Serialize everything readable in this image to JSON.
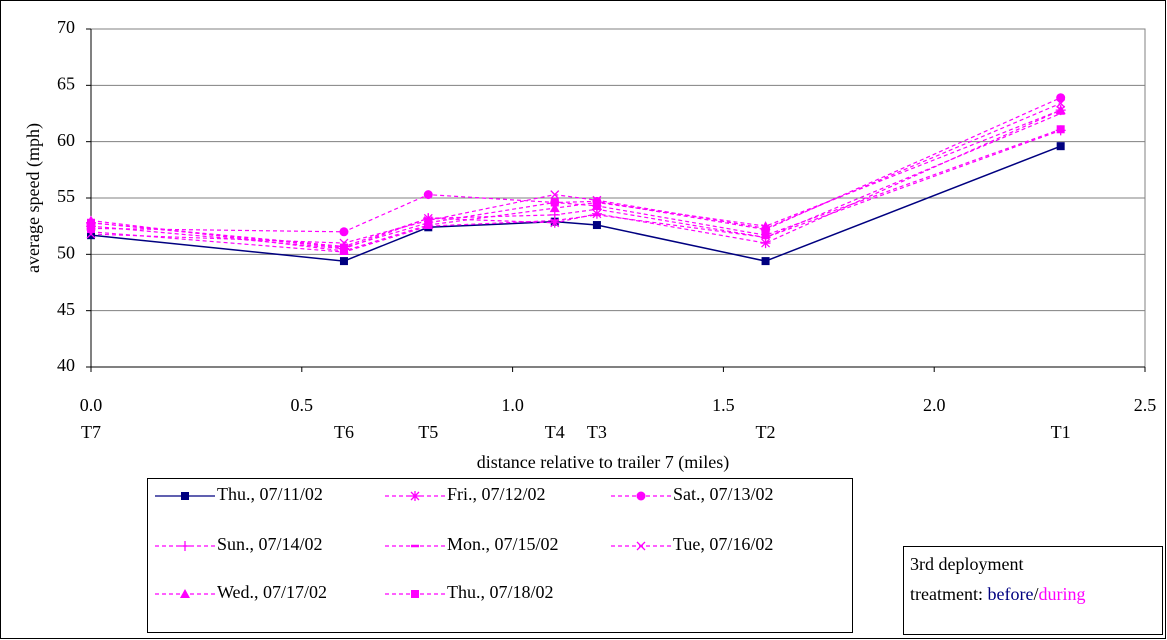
{
  "chart_data": {
    "type": "line",
    "y_label": "average speed (mph)",
    "x_label": "distance relative to trailer 7 (miles)",
    "x": [
      0.0,
      0.6,
      0.8,
      1.1,
      1.2,
      1.6,
      2.3
    ],
    "x_labels": [
      "T7",
      "T6",
      "T5",
      "T4",
      "T3",
      "T2",
      "T1"
    ],
    "xlim": [
      0,
      2.5
    ],
    "xticks": [
      {
        "value": 0,
        "label": "0.0"
      },
      0.5,
      {
        "value": 1,
        "label": "1.0"
      },
      1.5,
      {
        "value": 2,
        "label": "2.0"
      },
      2.5
    ],
    "ylim": [
      40,
      70
    ],
    "yticks": [
      40,
      45,
      50,
      55,
      60,
      65,
      70
    ],
    "grid": true,
    "series": [
      {
        "name": "Thu., 07/11/02",
        "color": "#000080",
        "style": "solid",
        "marker": "square",
        "values": [
          51.7,
          49.4,
          52.4,
          52.9,
          52.6,
          49.4,
          59.6
        ]
      },
      {
        "name": "Fri., 07/12/02",
        "color": "#ff00ff",
        "style": "dashed",
        "marker": "asterisk",
        "values": [
          52.5,
          50.5,
          53.2,
          52.8,
          53.6,
          51.0,
          62.8
        ]
      },
      {
        "name": "Sat., 07/13/02",
        "color": "#ff00ff",
        "style": "dashed",
        "marker": "circle",
        "values": [
          52.3,
          52.0,
          55.3,
          54.6,
          54.7,
          52.2,
          63.9
        ]
      },
      {
        "name": "Sun., 07/14/02",
        "color": "#ff00ff",
        "style": "dashed",
        "marker": "plus",
        "values": [
          52.8,
          50.7,
          53.2,
          53.5,
          54.0,
          51.5,
          61.0
        ]
      },
      {
        "name": "Mon., 07/15/02",
        "color": "#ff00ff",
        "style": "dashed",
        "marker": "dash",
        "values": [
          52.0,
          50.2,
          52.5,
          53.0,
          53.5,
          51.5,
          62.5
        ]
      },
      {
        "name": "Tue, 07/16/02",
        "color": "#ff00ff",
        "style": "dashed",
        "marker": "x",
        "values": [
          51.8,
          51.0,
          53.0,
          55.3,
          54.8,
          52.3,
          63.4
        ]
      },
      {
        "name": "Wed., 07/17/02",
        "color": "#ff00ff",
        "style": "dashed",
        "marker": "triangle",
        "values": [
          53.0,
          50.3,
          52.6,
          54.1,
          54.6,
          52.5,
          62.8
        ]
      },
      {
        "name": "Thu., 07/18/02",
        "color": "#ff00ff",
        "style": "dashed",
        "marker": "square",
        "values": [
          52.8,
          50.6,
          52.8,
          54.6,
          54.3,
          51.7,
          61.1
        ]
      }
    ],
    "note": {
      "title": "3rd deployment",
      "prefix": "treatment: ",
      "before": "before",
      "sep": "/",
      "during": "during"
    }
  }
}
